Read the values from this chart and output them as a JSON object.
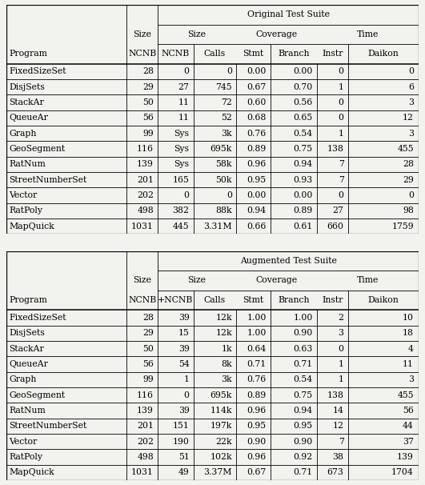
{
  "title1": "Original Test Suite",
  "title2": "Augmented Test Suite",
  "orig_data": [
    [
      "FixedSizeSet",
      "28",
      "0",
      "0",
      "0.00",
      "0.00",
      "0",
      "0"
    ],
    [
      "DisjSets",
      "29",
      "27",
      "745",
      "0.67",
      "0.70",
      "1",
      "6"
    ],
    [
      "StackAr",
      "50",
      "11",
      "72",
      "0.60",
      "0.56",
      "0",
      "3"
    ],
    [
      "QueueAr",
      "56",
      "11",
      "52",
      "0.68",
      "0.65",
      "0",
      "12"
    ],
    [
      "Graph",
      "99",
      "Sys",
      "3k",
      "0.76",
      "0.54",
      "1",
      "3"
    ],
    [
      "GeoSegment",
      "116",
      "Sys",
      "695k",
      "0.89",
      "0.75",
      "138",
      "455"
    ],
    [
      "RatNum",
      "139",
      "Sys",
      "58k",
      "0.96",
      "0.94",
      "7",
      "28"
    ],
    [
      "StreetNumberSet",
      "201",
      "165",
      "50k",
      "0.95",
      "0.93",
      "7",
      "29"
    ],
    [
      "Vector",
      "202",
      "0",
      "0",
      "0.00",
      "0.00",
      "0",
      "0"
    ],
    [
      "RatPoly",
      "498",
      "382",
      "88k",
      "0.94",
      "0.89",
      "27",
      "98"
    ],
    [
      "MapQuick",
      "1031",
      "445",
      "3.31M",
      "0.66",
      "0.61",
      "660",
      "1759"
    ]
  ],
  "aug_data": [
    [
      "FixedSizeSet",
      "28",
      "39",
      "12k",
      "1.00",
      "1.00",
      "2",
      "10"
    ],
    [
      "DisjSets",
      "29",
      "15",
      "12k",
      "1.00",
      "0.90",
      "3",
      "18"
    ],
    [
      "StackAr",
      "50",
      "39",
      "1k",
      "0.64",
      "0.63",
      "0",
      "4"
    ],
    [
      "QueueAr",
      "56",
      "54",
      "8k",
      "0.71",
      "0.71",
      "1",
      "11"
    ],
    [
      "Graph",
      "99",
      "1",
      "3k",
      "0.76",
      "0.54",
      "1",
      "3"
    ],
    [
      "GeoSegment",
      "116",
      "0",
      "695k",
      "0.89",
      "0.75",
      "138",
      "455"
    ],
    [
      "RatNum",
      "139",
      "39",
      "114k",
      "0.96",
      "0.94",
      "14",
      "56"
    ],
    [
      "StreetNumberSet",
      "201",
      "151",
      "197k",
      "0.95",
      "0.95",
      "12",
      "44"
    ],
    [
      "Vector",
      "202",
      "190",
      "22k",
      "0.90",
      "0.90",
      "7",
      "37"
    ],
    [
      "RatPoly",
      "498",
      "51",
      "102k",
      "0.96",
      "0.92",
      "38",
      "139"
    ],
    [
      "MapQuick",
      "1031",
      "49",
      "3.37M",
      "0.67",
      "0.71",
      "673",
      "1704"
    ]
  ],
  "bg": "#f2f2ee",
  "lc": "#000000",
  "tc": "#000000",
  "fs": 7.8
}
